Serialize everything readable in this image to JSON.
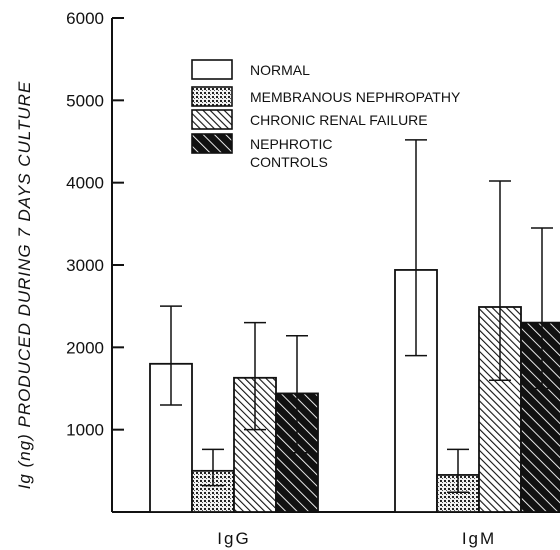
{
  "chart_data": {
    "type": "bar",
    "title": "",
    "xlabel": "",
    "ylabel": "Ig (ng) PRODUCED DURING 7 DAYS CULTURE",
    "ylim": [
      0,
      6000
    ],
    "yticks": [
      1000,
      2000,
      3000,
      4000,
      5000,
      6000
    ],
    "categories": [
      "IgG",
      "IgM"
    ],
    "legend_position": "top-center",
    "grid": false,
    "series": [
      {
        "name": "NORMAL",
        "pattern": "white",
        "values": [
          1800,
          2940
        ],
        "errors": [
          [
            1300,
            2500
          ],
          [
            1900,
            4520
          ]
        ]
      },
      {
        "name": "MEMBRANOUS NEPHROPATHY",
        "pattern": "dotted",
        "values": [
          500,
          450
        ],
        "errors": [
          [
            320,
            760
          ],
          [
            240,
            760
          ]
        ]
      },
      {
        "name": "CHRONIC RENAL FAILURE",
        "pattern": "dense-hatch",
        "values": [
          1630,
          2490
        ],
        "errors": [
          [
            1000,
            2300
          ],
          [
            1600,
            4020
          ]
        ]
      },
      {
        "name": "NEPHROTIC CONTROLS",
        "pattern": "hatch",
        "values": [
          1440,
          2300
        ],
        "errors": [
          [
            720,
            2140
          ],
          [
            1500,
            3450
          ]
        ]
      }
    ]
  }
}
